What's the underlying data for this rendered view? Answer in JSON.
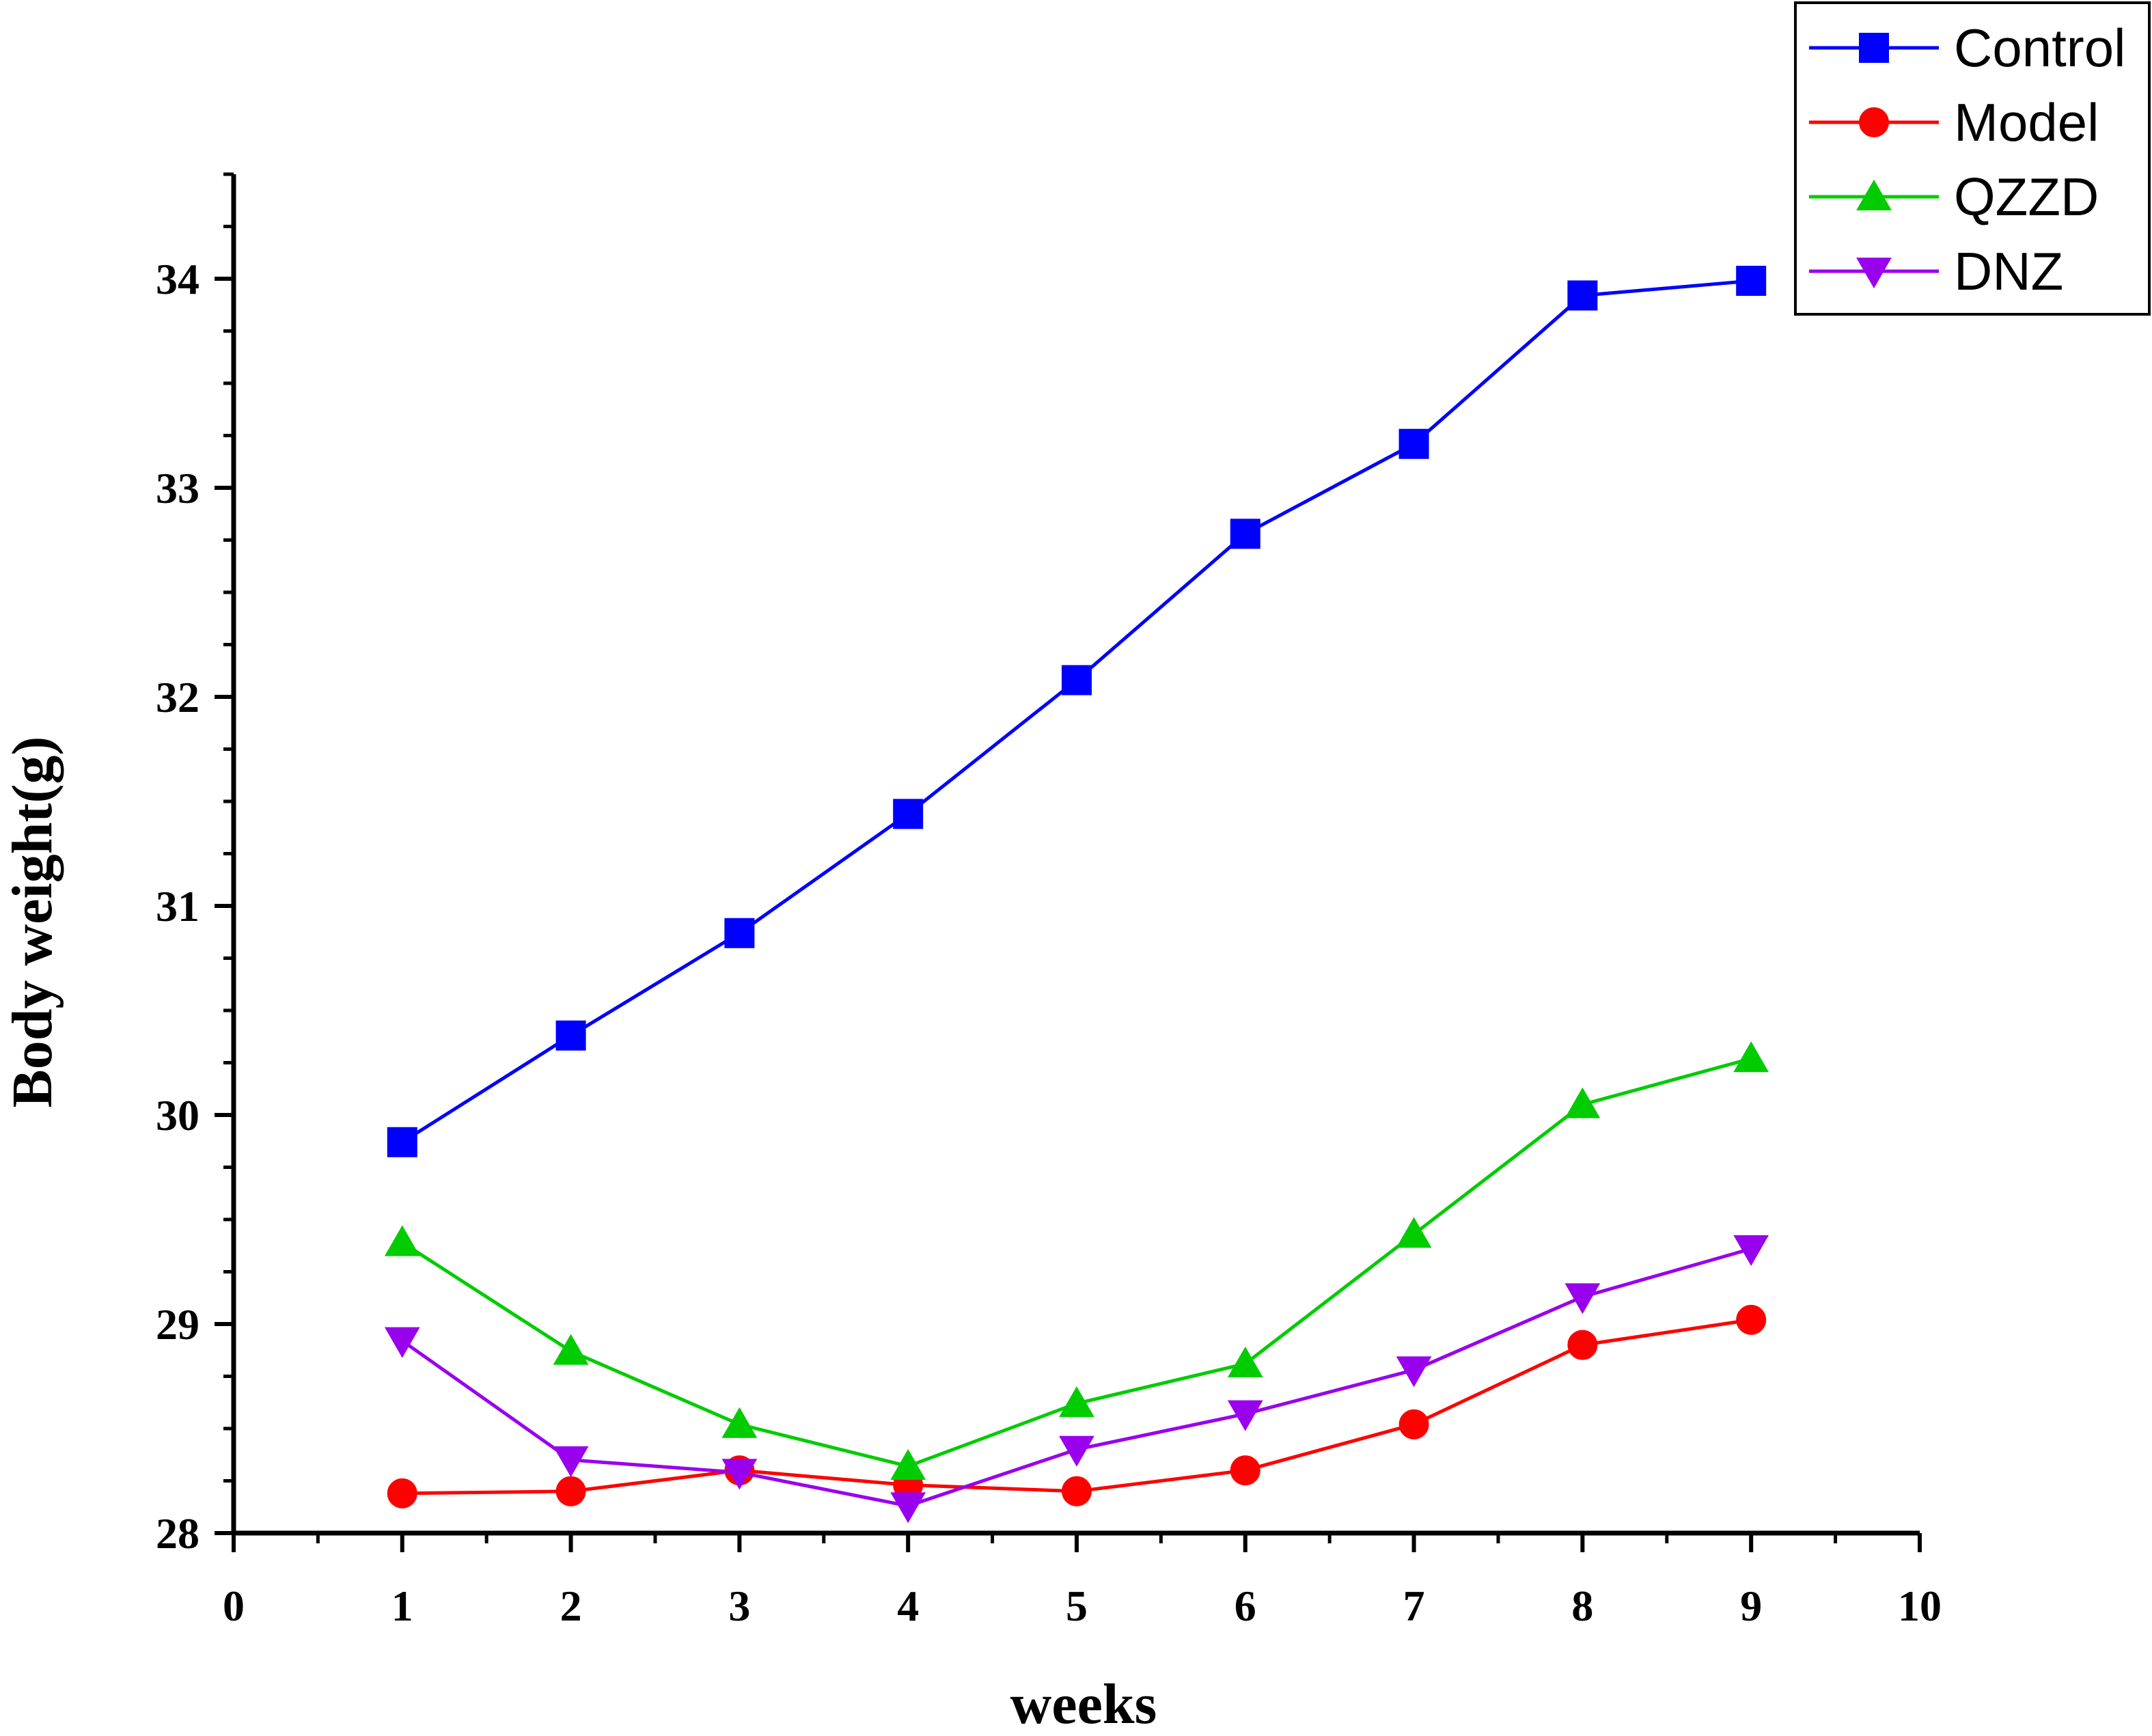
{
  "chart_data": {
    "type": "line",
    "title": "",
    "xlabel": "weeks",
    "ylabel": "Body weight(g)",
    "xlim": [
      0,
      10
    ],
    "ylim": [
      28,
      34.5
    ],
    "xticks": [
      0,
      1,
      2,
      3,
      4,
      5,
      6,
      7,
      8,
      9,
      10
    ],
    "yticks": [
      28,
      29,
      30,
      31,
      32,
      33,
      34
    ],
    "grid": false,
    "legend_position": "top-right",
    "x": [
      1,
      2,
      3,
      4,
      5,
      6,
      7,
      8,
      9
    ],
    "series": [
      {
        "name": "Control",
        "color": "#0000ff",
        "marker": "square",
        "values": [
          29.87,
          30.38,
          30.87,
          31.44,
          32.08,
          32.78,
          33.21,
          33.92,
          33.99
        ]
      },
      {
        "name": "Model",
        "color": "#ff0000",
        "marker": "circle",
        "values": [
          28.19,
          28.2,
          28.3,
          28.23,
          28.2,
          28.3,
          28.52,
          28.9,
          29.02
        ]
      },
      {
        "name": "QZZD",
        "color": "#00cc00",
        "marker": "triangle-up",
        "values": [
          29.39,
          28.87,
          28.52,
          28.32,
          28.62,
          28.81,
          29.43,
          30.05,
          30.27
        ]
      },
      {
        "name": "DNZ",
        "color": "#9900ee",
        "marker": "triangle-down",
        "values": [
          28.92,
          28.35,
          28.29,
          28.13,
          28.4,
          28.57,
          28.78,
          29.13,
          29.36
        ]
      }
    ]
  }
}
